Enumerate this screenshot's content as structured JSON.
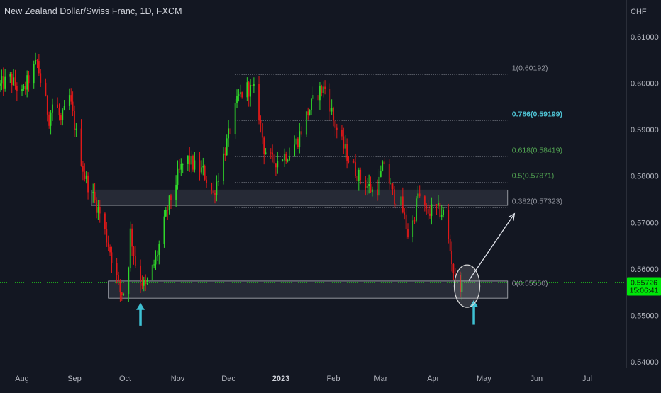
{
  "header": {
    "title": "New Zealand Dollar/Swiss Franc, 1D, FXCM"
  },
  "colors": {
    "background": "#131722",
    "text": "#b2b5be",
    "bull": "#2fd72a",
    "bear": "#e01818",
    "fib": "#787b86",
    "fib_786": "#4fc3d4",
    "fib_green": "#53a653",
    "zone_fill": "#2a2e39",
    "zone_border": "#b0b3ba",
    "arrow": "#3ec1d3",
    "price_label": "#00e60a",
    "price_line": "#1ea51e"
  },
  "chart_data": {
    "type": "candlestick",
    "instrument": "New Zealand Dollar/Swiss Franc",
    "timeframe": "1D",
    "source": "FXCM",
    "y_axis": {
      "currency": "CHF",
      "range": [
        0.54,
        0.612
      ],
      "ticks": [
        {
          "value": 0.61,
          "label": "0.61000"
        },
        {
          "value": 0.6,
          "label": "0.60000"
        },
        {
          "value": 0.59,
          "label": "0.59000"
        },
        {
          "value": 0.58,
          "label": "0.58000"
        },
        {
          "value": 0.57,
          "label": "0.57000"
        },
        {
          "value": 0.56,
          "label": "0.56000"
        },
        {
          "value": 0.55,
          "label": "0.55000"
        },
        {
          "value": 0.54,
          "label": "0.54000"
        }
      ]
    },
    "x_axis": {
      "range": [
        "2022-07-19",
        "2023-07-22"
      ],
      "ticks": [
        {
          "date": "2022-08-01",
          "label": "Aug",
          "bold": false
        },
        {
          "date": "2022-09-01",
          "label": "Sep",
          "bold": false
        },
        {
          "date": "2022-10-01",
          "label": "Oct",
          "bold": false
        },
        {
          "date": "2022-11-01",
          "label": "Nov",
          "bold": false
        },
        {
          "date": "2022-12-01",
          "label": "Dec",
          "bold": false
        },
        {
          "date": "2023-01-01",
          "label": "2023",
          "bold": true
        },
        {
          "date": "2023-02-01",
          "label": "Feb",
          "bold": false
        },
        {
          "date": "2023-03-01",
          "label": "Mar",
          "bold": false
        },
        {
          "date": "2023-04-01",
          "label": "Apr",
          "bold": false
        },
        {
          "date": "2023-05-01",
          "label": "May",
          "bold": false
        },
        {
          "date": "2023-06-01",
          "label": "Jun",
          "bold": false
        },
        {
          "date": "2023-07-01",
          "label": "Jul",
          "bold": false
        }
      ]
    },
    "price_path": [
      [
        "2022-07-19",
        0.5995
      ],
      [
        "2022-07-25",
        0.601
      ],
      [
        "2022-08-01",
        0.5975
      ],
      [
        "2022-08-05",
        0.601
      ],
      [
        "2022-08-10",
        0.6045
      ],
      [
        "2022-08-12",
        0.6005
      ],
      [
        "2022-08-17",
        0.5925
      ],
      [
        "2022-08-20",
        0.597
      ],
      [
        "2022-08-24",
        0.5915
      ],
      [
        "2022-08-29",
        0.597
      ],
      [
        "2022-09-02",
        0.589
      ],
      [
        "2022-09-07",
        0.58
      ],
      [
        "2022-09-12",
        0.5755
      ],
      [
        "2022-09-16",
        0.572
      ],
      [
        "2022-09-22",
        0.564
      ],
      [
        "2022-09-28",
        0.555
      ],
      [
        "2022-10-02",
        0.555
      ],
      [
        "2022-10-04",
        0.568
      ],
      [
        "2022-10-08",
        0.559
      ],
      [
        "2022-10-13",
        0.556
      ],
      [
        "2022-10-19",
        0.562
      ],
      [
        "2022-10-26",
        0.573
      ],
      [
        "2022-11-01",
        0.58
      ],
      [
        "2022-11-06",
        0.584
      ],
      [
        "2022-11-11",
        0.582
      ],
      [
        "2022-11-16",
        0.581
      ],
      [
        "2022-11-22",
        0.576
      ],
      [
        "2022-11-27",
        0.583
      ],
      [
        "2022-12-02",
        0.59
      ],
      [
        "2022-12-07",
        0.597
      ],
      [
        "2022-12-12",
        0.599
      ],
      [
        "2022-12-17",
        0.598
      ],
      [
        "2022-12-22",
        0.586
      ],
      [
        "2022-12-27",
        0.583
      ],
      [
        "2023-01-01",
        0.584
      ],
      [
        "2023-01-06",
        0.585
      ],
      [
        "2023-01-11",
        0.588
      ],
      [
        "2023-01-16",
        0.593
      ],
      [
        "2023-01-20",
        0.596
      ],
      [
        "2023-01-24",
        0.5985
      ],
      [
        "2023-01-28",
        0.599
      ],
      [
        "2023-02-01",
        0.592
      ],
      [
        "2023-02-06",
        0.587
      ],
      [
        "2023-02-11",
        0.583
      ],
      [
        "2023-02-16",
        0.58
      ],
      [
        "2023-02-21",
        0.578
      ],
      [
        "2023-02-26",
        0.576
      ],
      [
        "2023-03-03",
        0.583
      ],
      [
        "2023-03-08",
        0.576
      ],
      [
        "2023-03-13",
        0.574
      ],
      [
        "2023-03-18",
        0.566
      ],
      [
        "2023-03-23",
        0.576
      ],
      [
        "2023-03-28",
        0.572
      ],
      [
        "2023-04-02",
        0.573
      ],
      [
        "2023-04-07",
        0.572
      ],
      [
        "2023-04-11",
        0.564
      ],
      [
        "2023-04-15",
        0.5555
      ],
      [
        "2023-04-18",
        0.5573
      ]
    ],
    "current_price": {
      "value": 0.55726,
      "label": "0.55726",
      "countdown": "15:06:41"
    },
    "fibonacci": {
      "start_date": "2022-12-05",
      "end_date": "2023-05-15",
      "levels": [
        {
          "ratio": 1,
          "price": 0.60192,
          "label": "1(0.60192)",
          "style": "gray"
        },
        {
          "ratio": 0.786,
          "price": 0.59199,
          "label": "0.786(0.59199)",
          "style": "cyan"
        },
        {
          "ratio": 0.618,
          "price": 0.58419,
          "label": "0.618(0.58419)",
          "style": "green"
        },
        {
          "ratio": 0.5,
          "price": 0.57871,
          "label": "0.5(0.57871)",
          "style": "green"
        },
        {
          "ratio": 0.382,
          "price": 0.57323,
          "label": "0.382(0.57323)",
          "style": "gray"
        },
        {
          "ratio": 0,
          "price": 0.5555,
          "label": "0(0.55550)",
          "style": "gray"
        }
      ]
    },
    "zones": [
      {
        "name": "resistance-zone",
        "start_date": "2022-09-11",
        "end_date": "2023-05-15",
        "price_top": 0.577,
        "price_bottom": 0.5737
      },
      {
        "name": "support-zone",
        "start_date": "2022-09-21",
        "end_date": "2023-05-15",
        "price_top": 0.5574,
        "price_bottom": 0.5537
      }
    ],
    "annotations": [
      {
        "type": "up-arrow",
        "date": "2022-10-10",
        "price_tip": 0.5527,
        "price_base": 0.5478
      },
      {
        "type": "up-arrow",
        "date": "2023-04-25",
        "price_tip": 0.5533,
        "price_base": 0.548
      },
      {
        "type": "highlight-circle",
        "date": "2023-04-21",
        "price": 0.5563
      },
      {
        "type": "projection-arrow",
        "from_date": "2023-04-22",
        "from_price": 0.5575,
        "to_date": "2023-05-19",
        "to_price": 0.5719
      }
    ]
  }
}
